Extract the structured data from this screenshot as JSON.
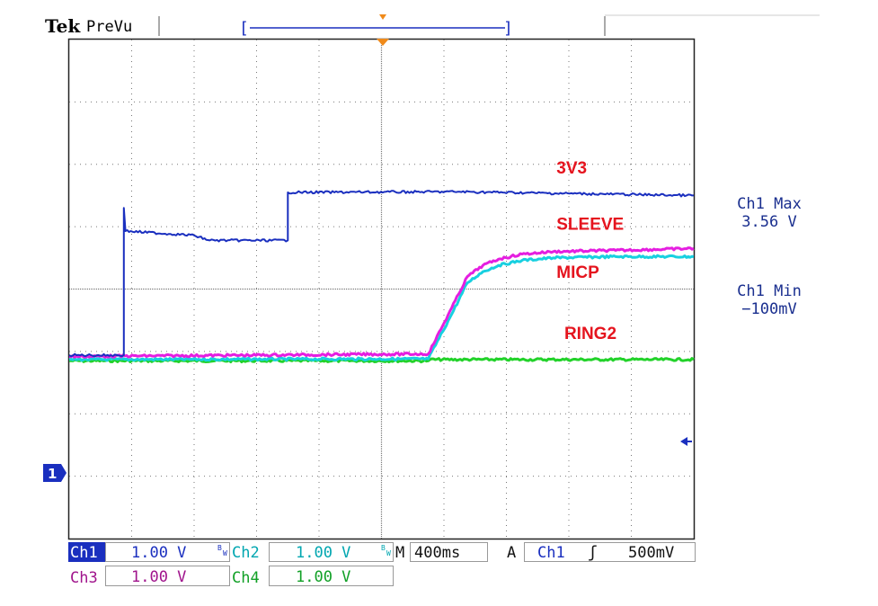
{
  "header": {
    "brand": "Tek",
    "mode": "PreVu"
  },
  "measurements": [
    {
      "label": "Ch1 Max",
      "value": "3.56 V"
    },
    {
      "label": "Ch1 Min",
      "value": "−100mV"
    }
  ],
  "ground_marker": "1",
  "channels": [
    {
      "name": "Ch1",
      "scale": "1.00 V",
      "color": "#1a2fbf",
      "bw": "B W"
    },
    {
      "name": "Ch2",
      "scale": "1.00 V",
      "color": "#00a6b0",
      "bw": "B W"
    },
    {
      "name": "Ch3",
      "scale": "1.00 V",
      "color": "#a0148c"
    },
    {
      "name": "Ch4",
      "scale": "1.00 V",
      "color": "#11a026"
    }
  ],
  "timebase": {
    "label": "M",
    "value": "400ms"
  },
  "trigger": {
    "mode": "A",
    "source": "Ch1",
    "slope": "ʃ",
    "level": "500mV"
  },
  "colors": {
    "ch1": "#1a2fbf",
    "ch2": "#18d0e0",
    "ch3": "#e51ee0",
    "ch4": "#22d22a",
    "label_red": "#e5141e",
    "trigger_orange": "#f08a1a"
  },
  "chart_data": {
    "type": "line",
    "x_unit": "s",
    "y_unit": "V",
    "xlim": [
      -2.0,
      2.0
    ],
    "ylim": [
      -4.0,
      4.0
    ],
    "grid": true,
    "series": [
      {
        "name": "3V3",
        "label_color": "#e5141e",
        "color": "#1a2fbf",
        "x": [
          -2.0,
          -1.65,
          -1.65,
          -1.64,
          -1.2,
          -1.1,
          -0.6,
          -0.6,
          0.5,
          2.0
        ],
        "y": [
          -1.06,
          -1.06,
          1.3,
          0.93,
          0.86,
          0.78,
          0.78,
          1.55,
          1.56,
          1.5
        ]
      },
      {
        "name": "SLEEVE",
        "label_color": "#e5141e",
        "color": "#e51ee0",
        "x": [
          -2.0,
          0.3,
          0.45,
          0.55,
          0.65,
          0.75,
          0.9,
          1.1,
          1.5,
          2.0
        ],
        "y": [
          -1.08,
          -1.04,
          -0.3,
          0.2,
          0.38,
          0.48,
          0.56,
          0.6,
          0.62,
          0.65
        ]
      },
      {
        "name": "MICP",
        "label_color": "#e5141e",
        "color": "#18d0e0",
        "x": [
          -2.0,
          0.3,
          0.45,
          0.55,
          0.65,
          0.75,
          0.9,
          1.1,
          1.5,
          2.0
        ],
        "y": [
          -1.13,
          -1.12,
          -0.4,
          0.1,
          0.28,
          0.38,
          0.46,
          0.5,
          0.52,
          0.52
        ]
      },
      {
        "name": "RING2",
        "label_color": "#e5141e",
        "color": "#22d22a",
        "x": [
          -2.0,
          0.3,
          0.31,
          2.0
        ],
        "y": [
          -1.15,
          -1.15,
          -1.13,
          -1.13
        ]
      }
    ]
  }
}
